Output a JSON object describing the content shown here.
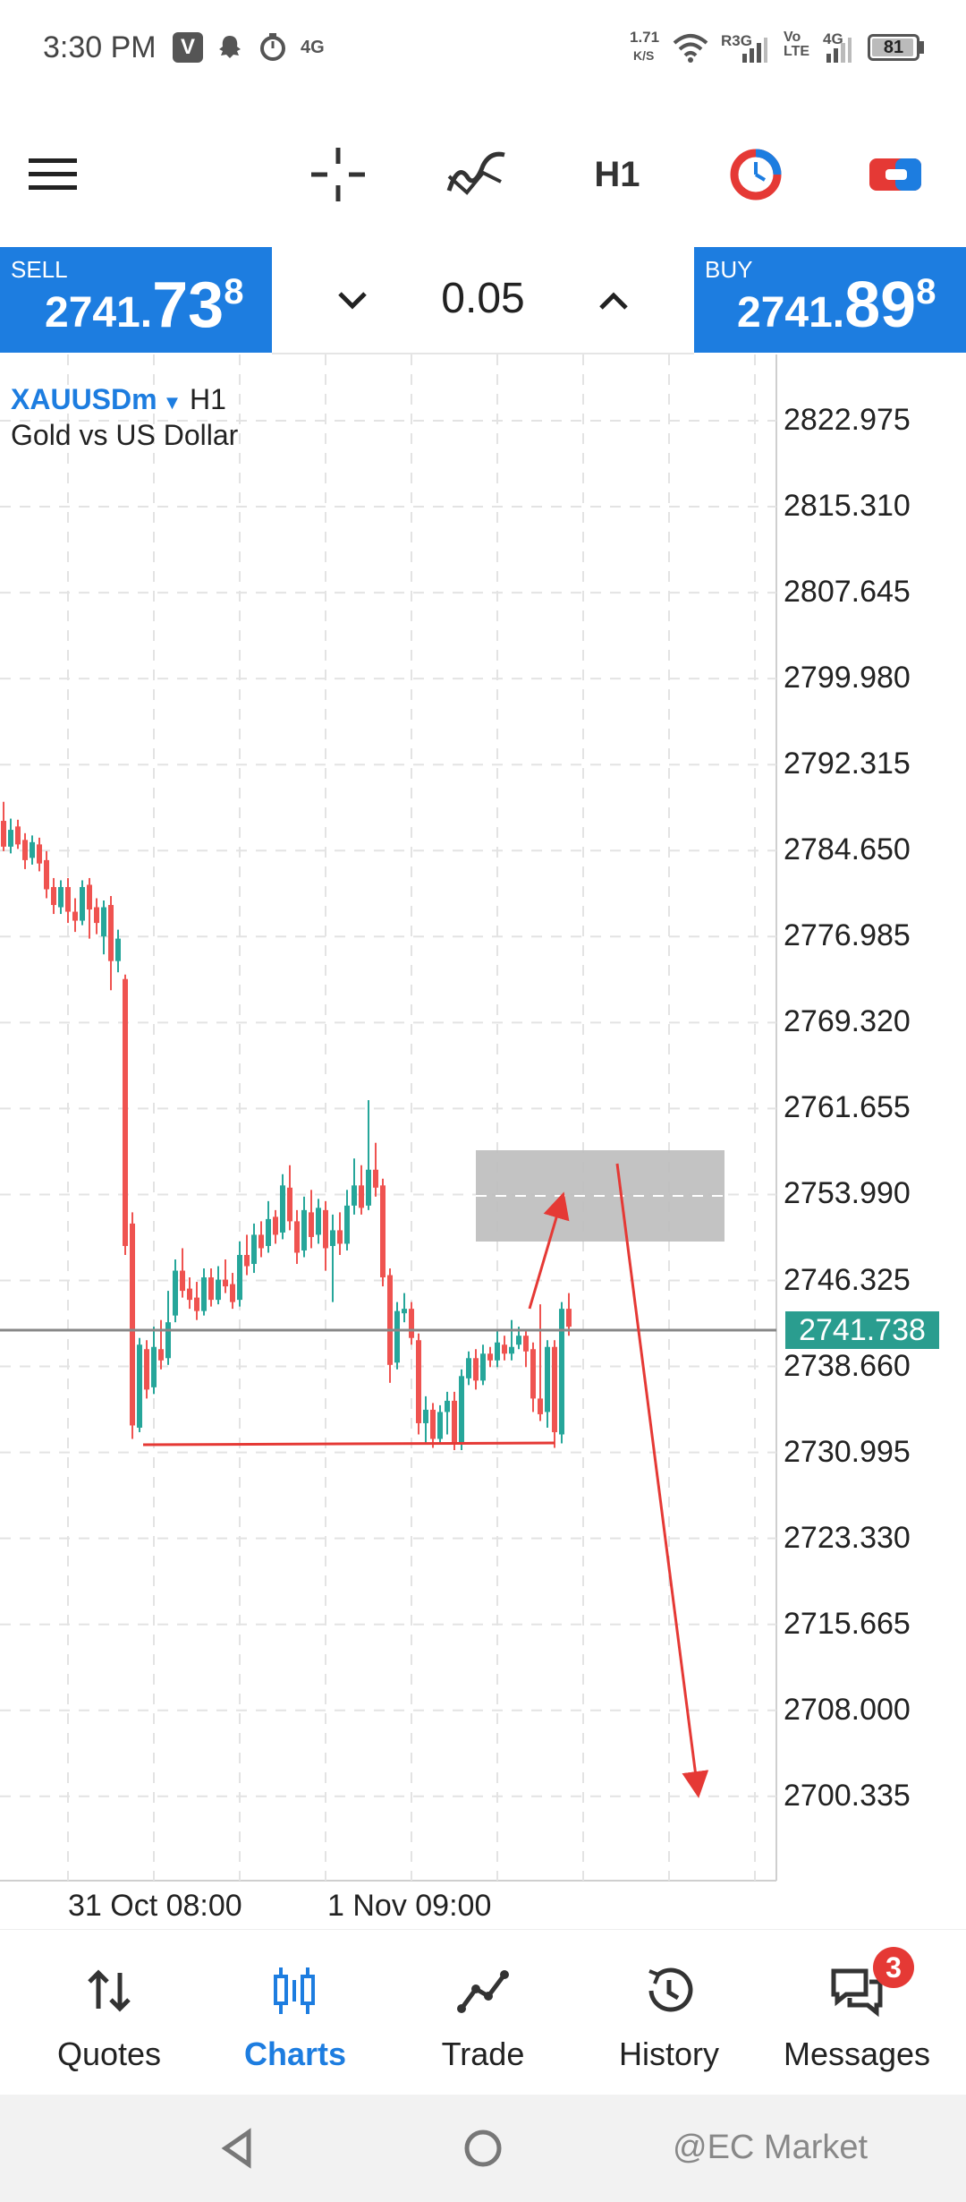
{
  "status_bar": {
    "time": "3:30 PM",
    "net_speed_value": "1.71",
    "net_speed_unit": "K/S",
    "sim1": "R3G",
    "volte": "Vo LTE",
    "sim2": "4G",
    "network_label": "4G",
    "battery": "81"
  },
  "toolbar": {
    "timeframe": "H1",
    "icons": [
      "menu-icon",
      "crosshair-icon",
      "indicators-icon",
      "timeframe-button",
      "chart-color-icon",
      "trade-toggle-icon"
    ]
  },
  "trade_panel": {
    "sell_label": "SELL",
    "sell_main": "2741.",
    "sell_big": "73",
    "sell_sup": "8",
    "buy_label": "BUY",
    "buy_main": "2741.",
    "buy_big": "89",
    "buy_sup": "8",
    "lot": "0.05"
  },
  "chart": {
    "symbol": "XAUUSDm",
    "timeframe": "H1",
    "description": "Gold vs US Dollar",
    "current_price": "2741.738",
    "price_axis": [
      "2822.975",
      "2815.310",
      "2807.645",
      "2799.980",
      "2792.315",
      "2784.650",
      "2776.985",
      "2769.320",
      "2761.655",
      "2753.990",
      "2746.325",
      "2738.660",
      "2730.995",
      "2723.330",
      "2715.665",
      "2708.000",
      "2700.335"
    ],
    "time_axis": [
      "31 Oct 08:00",
      "1 Nov 09:00"
    ],
    "colors": {
      "bull": "#26a69a",
      "bear": "#ef5350",
      "annotation": "#e53935",
      "grid": "#e3e3e3",
      "current_price": "#2a9d8f"
    }
  },
  "bottom_nav": {
    "items": [
      {
        "label": "Quotes",
        "icon": "quotes-icon"
      },
      {
        "label": "Charts",
        "icon": "charts-icon",
        "active": true
      },
      {
        "label": "Trade",
        "icon": "trade-icon"
      },
      {
        "label": "History",
        "icon": "history-icon"
      },
      {
        "label": "Messages",
        "icon": "messages-icon"
      }
    ],
    "messages_badge": "3"
  },
  "watermark": "@EC Market"
}
